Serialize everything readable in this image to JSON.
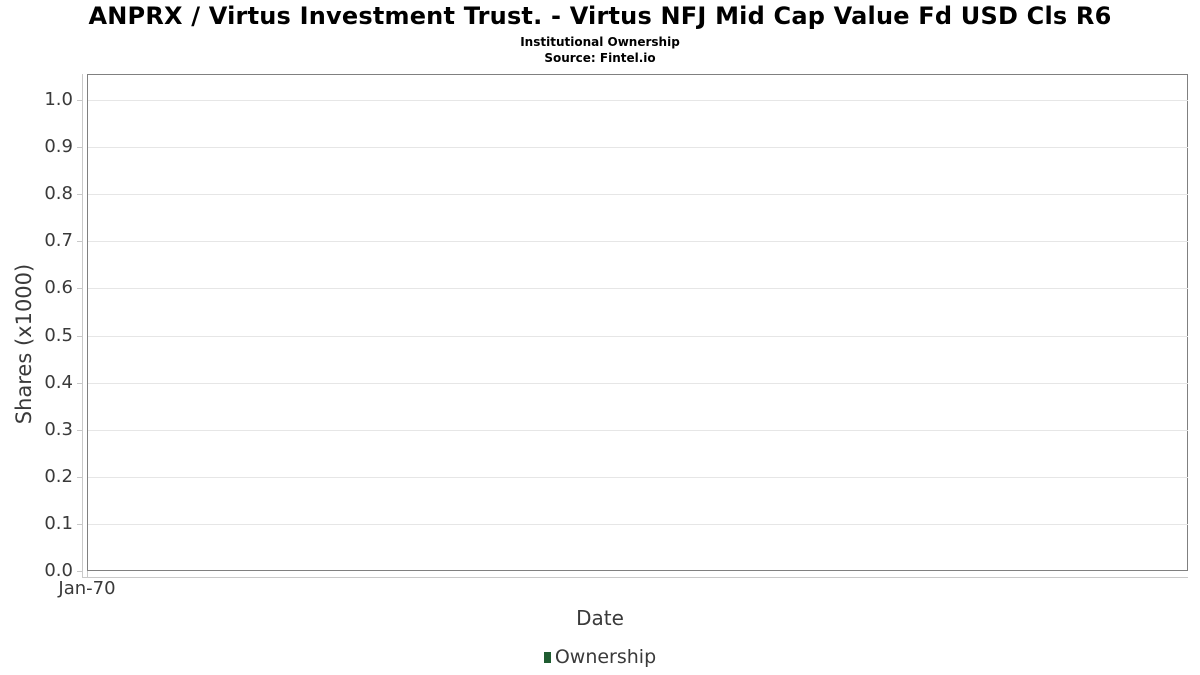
{
  "header": {
    "title": "ANPRX / Virtus Investment Trust. - Virtus NFJ Mid Cap Value Fd USD Cls R6",
    "subtitle": "Institutional Ownership",
    "source": "Source: Fintel.io"
  },
  "chart_data": {
    "type": "line",
    "title": "ANPRX / Virtus Investment Trust. - Virtus NFJ Mid Cap Value Fd USD Cls R6",
    "subtitle": "Institutional Ownership",
    "source": "Source: Fintel.io",
    "xlabel": "Date",
    "ylabel": "Shares (x1000)",
    "x_tick_labels": [
      "Jan-70"
    ],
    "y_ticks": [
      0.0,
      0.1,
      0.2,
      0.3,
      0.4,
      0.5,
      0.6,
      0.7,
      0.8,
      0.9,
      1.0
    ],
    "ylim": [
      0.0,
      1.0
    ],
    "grid": "horizontal",
    "legend": {
      "position": "bottom",
      "entries": [
        {
          "label": "Ownership",
          "color": "#1f5c31"
        }
      ]
    },
    "series": [
      {
        "name": "Ownership",
        "x": [],
        "values": []
      }
    ]
  },
  "colors": {
    "plot_border": "#808080",
    "gridline": "#e6e6e6",
    "axis_line": "#c9c9c9",
    "axis_text": "#3a3a3a",
    "title_text": "#000000",
    "legend_marker": "#1f5c31",
    "background": "#ffffff"
  }
}
